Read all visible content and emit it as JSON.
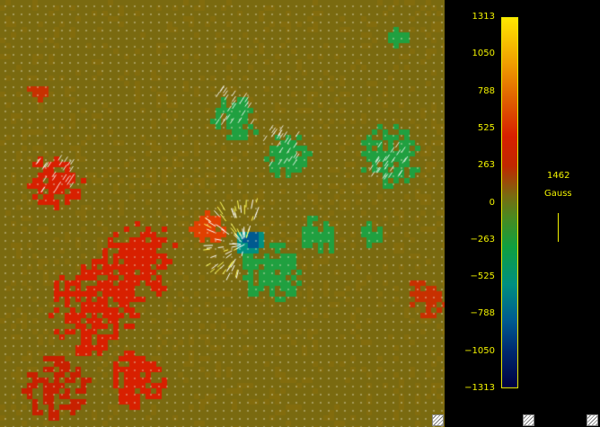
{
  "colorbar": {
    "ticks": [
      "1313",
      "1050",
      "788",
      "525",
      "263",
      "0",
      "−263",
      "−525",
      "−788",
      "−1050",
      "−1313"
    ]
  },
  "scale": {
    "value": "1462",
    "unit": "Gauss"
  },
  "colors": {
    "background": "#7a6a10",
    "positive": "#d82000",
    "negative": "#10a040",
    "label": "#f2f200"
  }
}
